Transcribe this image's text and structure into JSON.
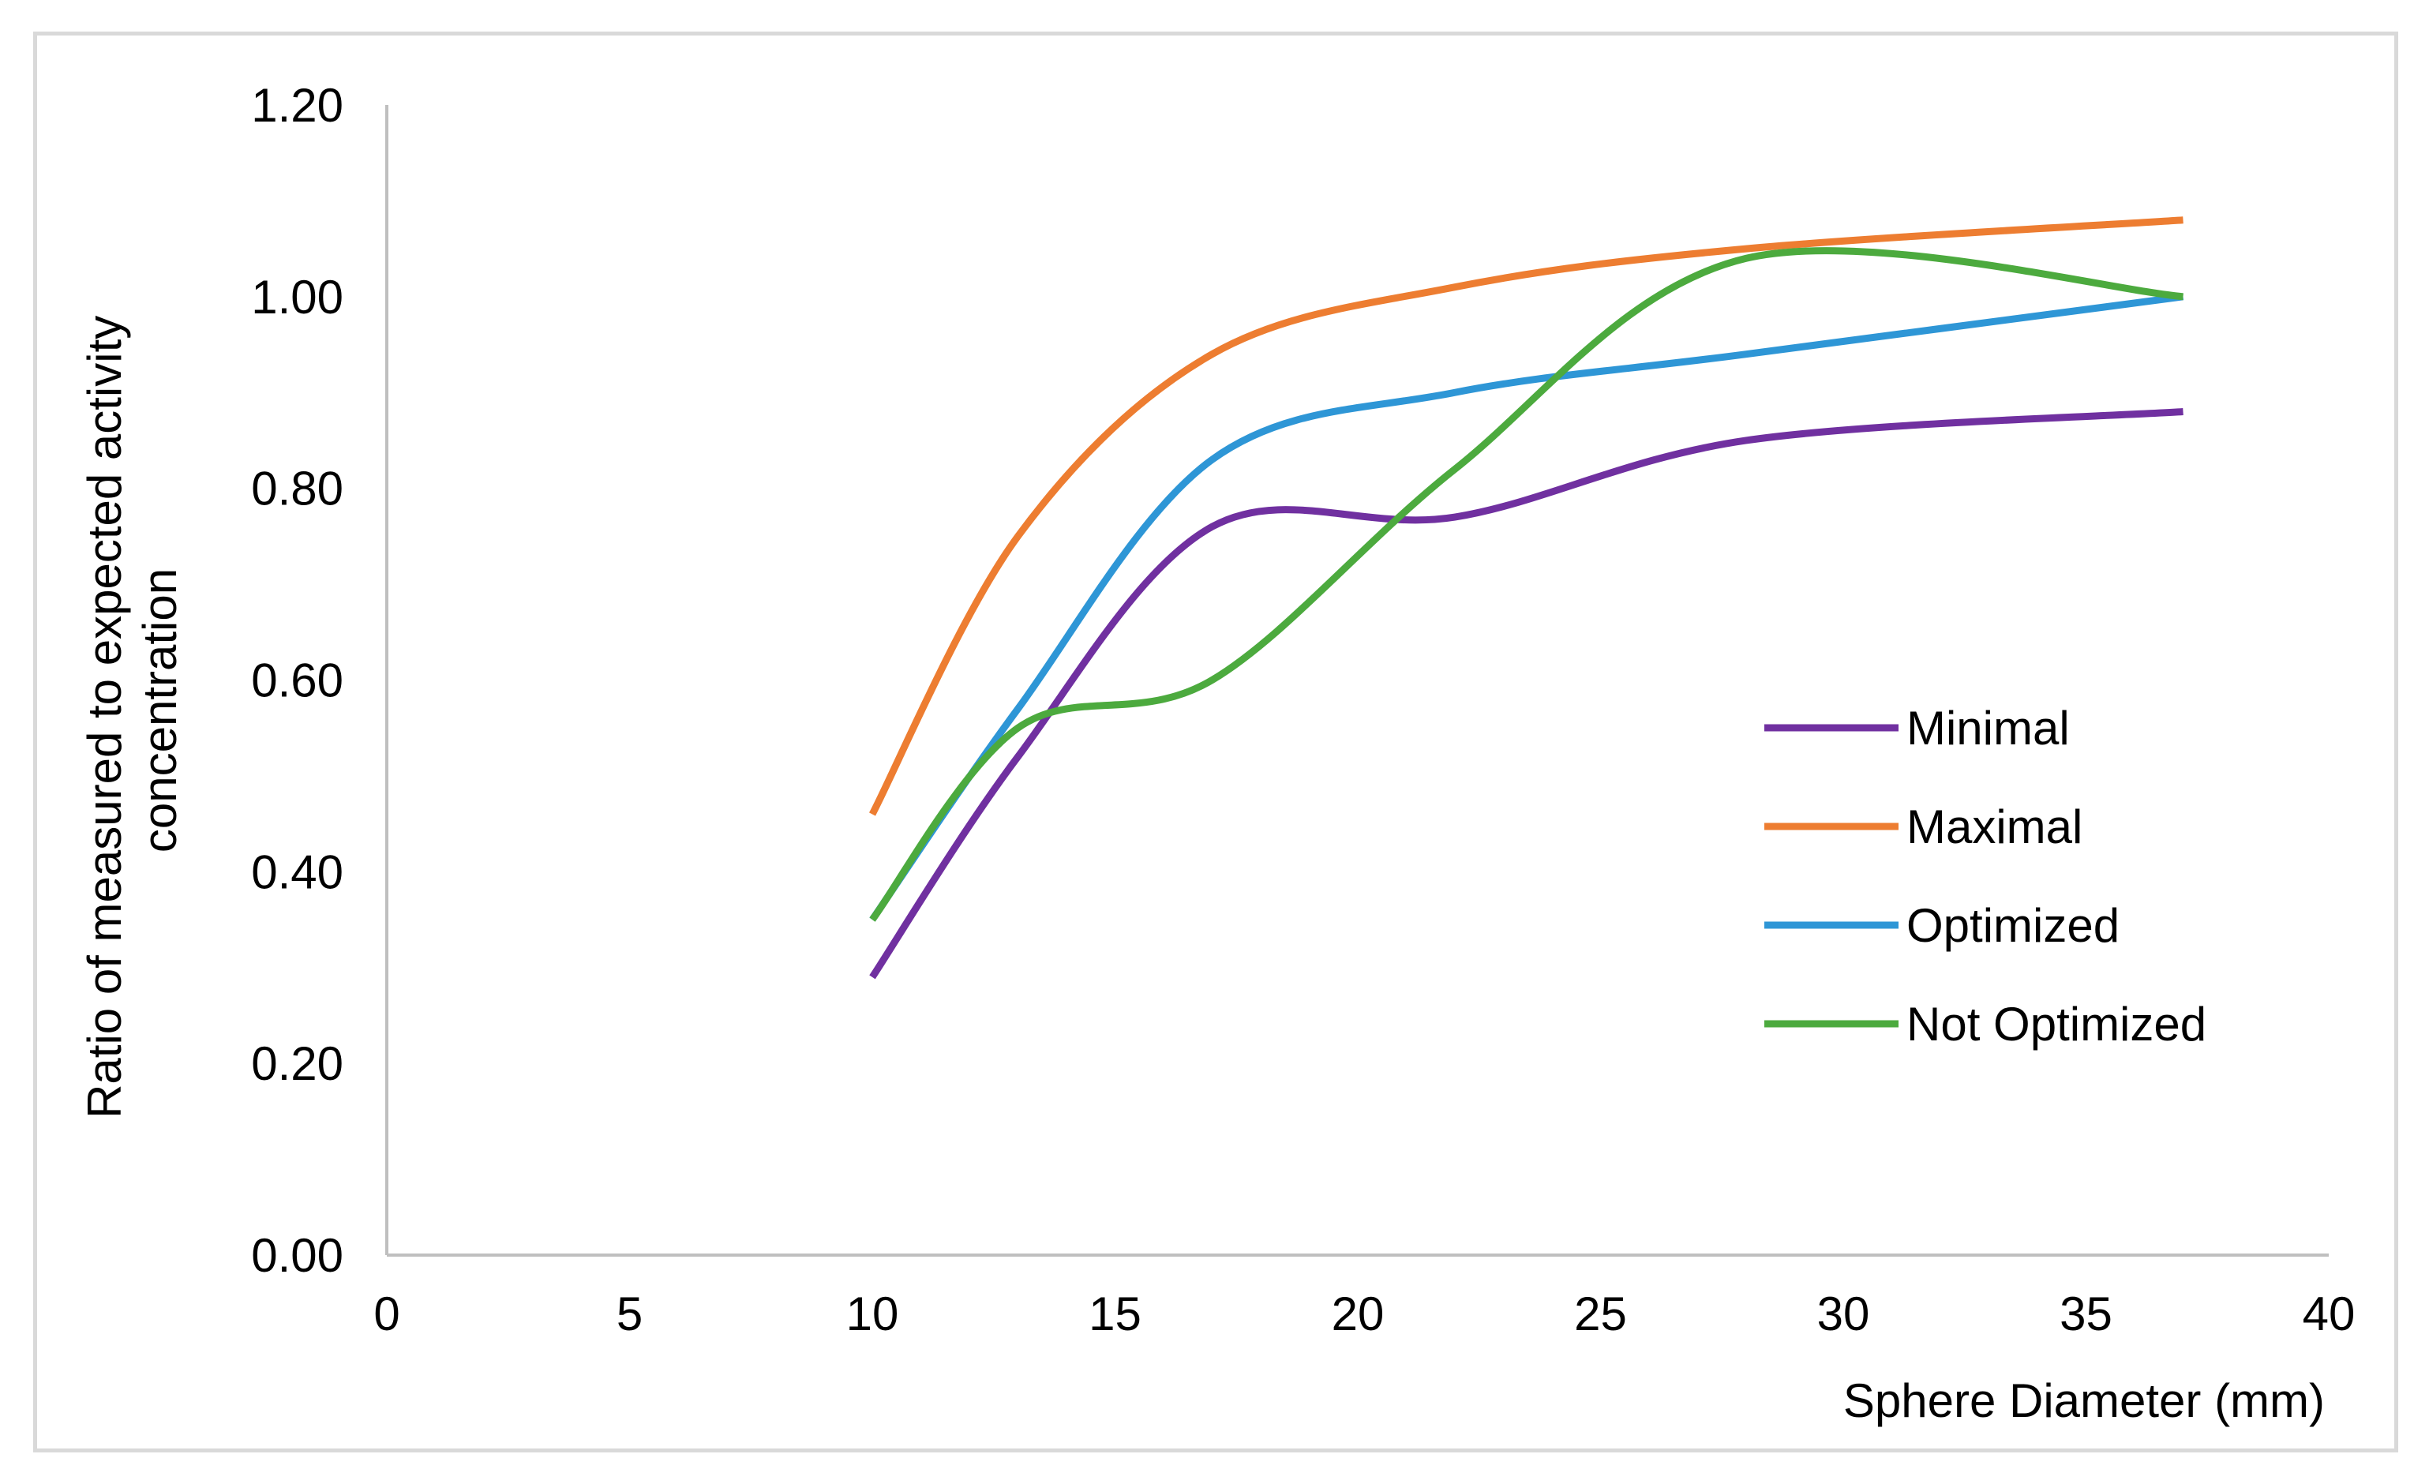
{
  "chart_data": {
    "type": "line",
    "title": "",
    "xlabel": "Sphere Diameter  (mm)",
    "ylabel_lines": [
      "Ratio  of measured to expected activity",
      "concentration"
    ],
    "xlim": [
      0,
      40
    ],
    "ylim": [
      0,
      1.2
    ],
    "x_ticks": [
      "0",
      "5",
      "10",
      "15",
      "20",
      "25",
      "30",
      "35",
      "40"
    ],
    "y_ticks": [
      "0.00",
      "0.20",
      "0.40",
      "0.60",
      "0.80",
      "1.00",
      "1.20"
    ],
    "grid": false,
    "legend_position": "right",
    "x": [
      10,
      13,
      17,
      22,
      28,
      37
    ],
    "series": [
      {
        "name": "Minimal",
        "color": "#7030a0",
        "values": [
          0.29,
          0.52,
          0.76,
          0.77,
          0.85,
          0.88
        ]
      },
      {
        "name": "Maximal",
        "color": "#ed7d31",
        "values": [
          0.46,
          0.75,
          0.94,
          1.01,
          1.05,
          1.08
        ]
      },
      {
        "name": "Optimized",
        "color": "#2e96d6",
        "values": [
          0.35,
          0.57,
          0.83,
          0.9,
          0.94,
          1.0
        ]
      },
      {
        "name": "Not Optimized",
        "color": "#4caa3e",
        "values": [
          0.35,
          0.55,
          0.6,
          0.82,
          1.04,
          1.0
        ]
      }
    ]
  }
}
